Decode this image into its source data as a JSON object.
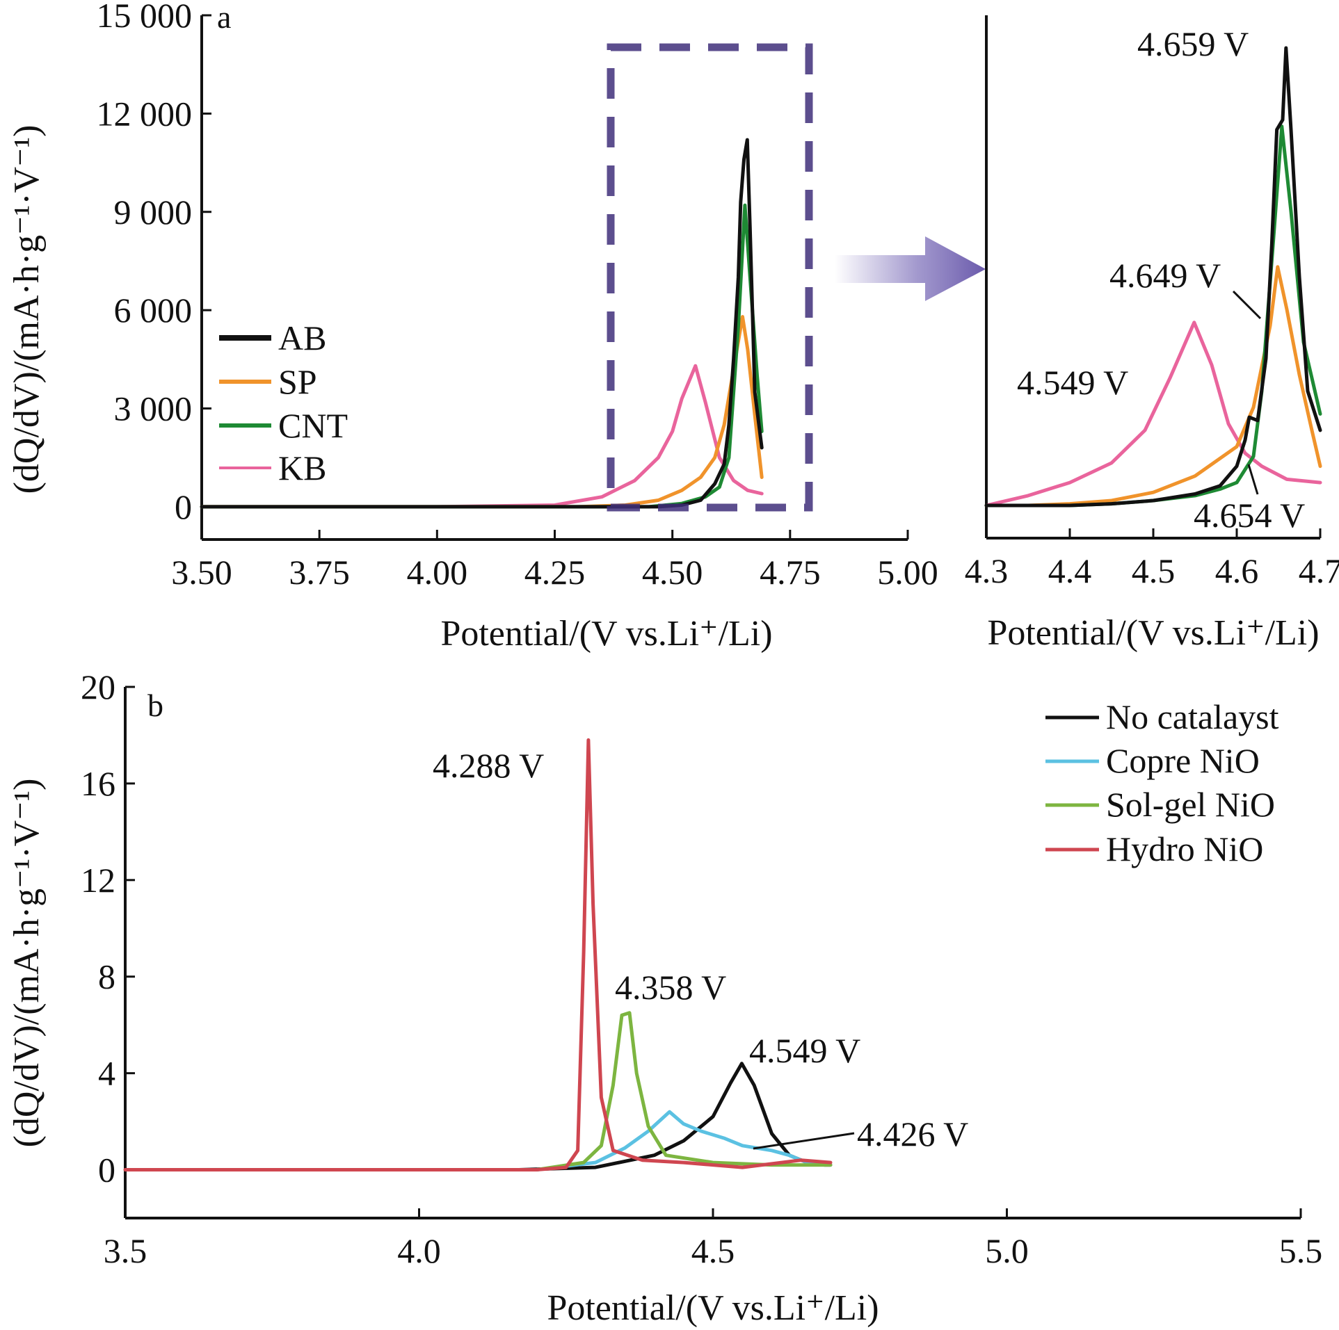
{
  "chart_data": [
    {
      "id": "a-main",
      "panel_label": "a",
      "type": "line",
      "xlabel": "Potential/(V vs.Li⁺/Li)",
      "ylabel": "(dQ/dV)/(mA·h·g⁻¹·V⁻¹)",
      "xlim": [
        3.5,
        5.0
      ],
      "ylim": [
        -1000,
        15000
      ],
      "x_ticks": [
        3.5,
        3.75,
        4.0,
        4.25,
        4.5,
        4.75,
        5.0
      ],
      "x_tick_labels": [
        "3.50",
        "3.75",
        "4.00",
        "4.25",
        "4.50",
        "4.75",
        "5.00"
      ],
      "y_ticks": [
        0,
        3000,
        6000,
        9000,
        12000,
        15000
      ],
      "y_tick_labels": [
        "0",
        "3 000",
        "6 000",
        "9 000",
        "12 000",
        "15 000"
      ],
      "legend_position": "left",
      "series": [
        {
          "name": "AB",
          "color": "#111111",
          "x": [
            3.5,
            4.0,
            4.3,
            4.4,
            4.47,
            4.52,
            4.56,
            4.59,
            4.61,
            4.62,
            4.63,
            4.64,
            4.645,
            4.652,
            4.659,
            4.665,
            4.675,
            4.69
          ],
          "y": [
            0,
            0,
            0,
            0,
            0,
            50,
            200,
            700,
            1300,
            2500,
            4500,
            7000,
            9300,
            10600,
            11200,
            8500,
            3500,
            1800
          ]
        },
        {
          "name": "SP",
          "color": "#f0932b",
          "x": [
            3.5,
            4.0,
            4.3,
            4.4,
            4.47,
            4.52,
            4.56,
            4.59,
            4.61,
            4.63,
            4.649,
            4.66,
            4.675,
            4.69
          ],
          "y": [
            0,
            0,
            0,
            50,
            200,
            500,
            900,
            1500,
            2500,
            4200,
            5800,
            4800,
            2800,
            900
          ]
        },
        {
          "name": "CNT",
          "color": "#1e8a34",
          "x": [
            3.5,
            4.0,
            4.3,
            4.45,
            4.52,
            4.57,
            4.6,
            4.62,
            4.64,
            4.654,
            4.665,
            4.68,
            4.69
          ],
          "y": [
            0,
            0,
            0,
            0,
            100,
            300,
            600,
            1500,
            5500,
            9200,
            7000,
            4000,
            2300
          ]
        },
        {
          "name": "KB",
          "color": "#e9649c",
          "x": [
            3.5,
            4.0,
            4.25,
            4.35,
            4.42,
            4.47,
            4.5,
            4.52,
            4.549,
            4.57,
            4.6,
            4.63,
            4.66,
            4.69
          ],
          "y": [
            0,
            0,
            50,
            300,
            800,
            1500,
            2300,
            3300,
            4300,
            3200,
            1500,
            800,
            500,
            400
          ]
        }
      ]
    },
    {
      "id": "a-zoom",
      "type": "line",
      "xlabel": "Potential/(V vs.Li⁺/Li)",
      "xlim": [
        4.3,
        4.7
      ],
      "x_ticks": [
        4.3,
        4.4,
        4.5,
        4.6,
        4.7
      ],
      "x_tick_labels": [
        "4.3",
        "4.4",
        "4.5",
        "4.6",
        "4.7"
      ],
      "ylim": [
        -1000,
        15000
      ],
      "annotations": [
        "4.659 V",
        "4.649 V",
        "4.549 V",
        "4.654 V"
      ],
      "series": [
        {
          "name": "AB",
          "color": "#111111",
          "x": [
            4.3,
            4.4,
            4.45,
            4.5,
            4.55,
            4.58,
            4.6,
            4.61,
            4.615,
            4.625,
            4.635,
            4.642,
            4.648,
            4.655,
            4.659,
            4.665,
            4.675,
            4.685,
            4.7
          ],
          "y": [
            0,
            0,
            50,
            150,
            350,
            600,
            1200,
            2000,
            2700,
            2600,
            4500,
            8000,
            11500,
            11800,
            14000,
            11500,
            7000,
            3500,
            2300
          ]
        },
        {
          "name": "SP",
          "color": "#f0932b",
          "x": [
            4.3,
            4.35,
            4.4,
            4.45,
            4.5,
            4.55,
            4.6,
            4.62,
            4.64,
            4.649,
            4.66,
            4.675,
            4.69,
            4.7
          ],
          "y": [
            0,
            0,
            50,
            150,
            400,
            900,
            1800,
            3000,
            5500,
            7300,
            6000,
            4000,
            2300,
            1200
          ]
        },
        {
          "name": "CNT",
          "color": "#1e8a34",
          "x": [
            4.3,
            4.4,
            4.45,
            4.5,
            4.55,
            4.58,
            4.6,
            4.62,
            4.63,
            4.645,
            4.654,
            4.665,
            4.68,
            4.7
          ],
          "y": [
            0,
            0,
            50,
            150,
            300,
            500,
            700,
            1500,
            3500,
            8500,
            11600,
            9000,
            5000,
            2800
          ]
        },
        {
          "name": "KB",
          "color": "#e9649c",
          "x": [
            4.3,
            4.35,
            4.4,
            4.45,
            4.49,
            4.52,
            4.549,
            4.57,
            4.59,
            4.61,
            4.63,
            4.66,
            4.7
          ],
          "y": [
            0,
            300,
            700,
            1300,
            2300,
            3900,
            5600,
            4300,
            2500,
            1600,
            1200,
            800,
            700
          ]
        }
      ]
    },
    {
      "id": "b",
      "panel_label": "b",
      "type": "line",
      "xlabel": "Potential/(V vs.Li⁺/Li)",
      "ylabel": "(dQ/dV)/(mA·h·g⁻¹·V⁻¹)",
      "xlim": [
        3.5,
        5.5
      ],
      "ylim": [
        -2,
        20
      ],
      "x_ticks": [
        3.5,
        4.0,
        4.5,
        5.0,
        5.5
      ],
      "x_tick_labels": [
        "3.5",
        "4.0",
        "4.5",
        "5.0",
        "5.5"
      ],
      "y_ticks": [
        0,
        4,
        8,
        12,
        16,
        20
      ],
      "y_tick_labels": [
        "0",
        "4",
        "8",
        "12",
        "16",
        "20"
      ],
      "legend_position": "top-right",
      "annotations": [
        "4.288 V",
        "4.358 V",
        "4.549 V",
        "4.426 V"
      ],
      "series": [
        {
          "name": "No catalayst",
          "color": "#111111",
          "x": [
            4.17,
            4.3,
            4.4,
            4.45,
            4.5,
            4.53,
            4.549,
            4.57,
            4.6,
            4.63,
            4.66,
            4.69,
            4.7
          ],
          "y": [
            0,
            0.1,
            0.6,
            1.2,
            2.2,
            3.6,
            4.4,
            3.5,
            1.5,
            0.6,
            0.3,
            0.2,
            0.2
          ]
        },
        {
          "name": "Copre NiO",
          "color": "#5bc1e2",
          "x": [
            4.2,
            4.3,
            4.35,
            4.39,
            4.426,
            4.45,
            4.48,
            4.52,
            4.55,
            4.6,
            4.63,
            4.66,
            4.7
          ],
          "y": [
            0,
            0.3,
            0.9,
            1.6,
            2.4,
            1.9,
            1.6,
            1.3,
            1.0,
            0.8,
            0.6,
            0.3,
            0.2
          ]
        },
        {
          "name": "Sol-gel NiO",
          "color": "#7db540",
          "x": [
            3.5,
            4.2,
            4.28,
            4.31,
            4.33,
            4.345,
            4.358,
            4.37,
            4.39,
            4.42,
            4.5,
            4.6,
            4.7
          ],
          "y": [
            0,
            0,
            0.3,
            1.0,
            3.5,
            6.4,
            6.5,
            4.0,
            1.8,
            0.6,
            0.3,
            0.2,
            0.2
          ]
        },
        {
          "name": "Hydro NiO",
          "color": "#cf4650",
          "x": [
            3.5,
            4.0,
            4.2,
            4.25,
            4.27,
            4.28,
            4.288,
            4.296,
            4.31,
            4.33,
            4.38,
            4.45,
            4.55,
            4.65,
            4.7
          ],
          "y": [
            0,
            0,
            0,
            0.1,
            0.8,
            9.0,
            17.8,
            11.0,
            3.0,
            0.8,
            0.4,
            0.3,
            0.1,
            0.4,
            0.3
          ]
        }
      ]
    }
  ]
}
